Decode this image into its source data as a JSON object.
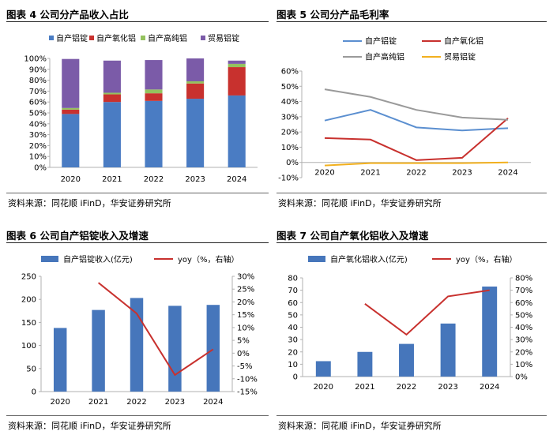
{
  "colors": {
    "blue": "#4a7cc3",
    "red": "#c8312e",
    "green": "#94c25e",
    "purple": "#7b5ba8",
    "grey": "#9a9a9a",
    "yellow": "#f2b01e",
    "lightblue": "#5b8fd0",
    "bar_blue": "#4676bb"
  },
  "panels": [
    {
      "title": "图表 4 公司分产品收入占比",
      "source": "资料来源：同花顺 iFinD，华安证券研究所"
    },
    {
      "title": "图表 5 公司分产品毛利率",
      "source": "资料来源：同花顺 iFinD，华安证券研究所"
    },
    {
      "title": "图表 6 公司自产铝锭收入及增速",
      "source": "资料来源：同花顺 iFinD，华安证券研究所"
    },
    {
      "title": "图表 7 公司自产氧化铝收入及增速",
      "source": "资料来源：同花顺 iFinD，华安证券研究所"
    }
  ],
  "chart_data": [
    {
      "type": "bar",
      "stacked": true,
      "title": "公司分产品收入占比",
      "categories": [
        "2020",
        "2021",
        "2022",
        "2023",
        "2024"
      ],
      "ylim": [
        0,
        100
      ],
      "y_ticks": [
        "0%",
        "10%",
        "20%",
        "30%",
        "40%",
        "50%",
        "60%",
        "70%",
        "80%",
        "90%",
        "100%"
      ],
      "legend": [
        "自产铝锭",
        "自产氧化铝",
        "自产高纯铝",
        "贸易铝锭"
      ],
      "series": [
        {
          "name": "自产铝锭",
          "values": [
            49,
            60,
            61,
            63,
            66
          ]
        },
        {
          "name": "自产氧化铝",
          "values": [
            4,
            7,
            7,
            14,
            26
          ]
        },
        {
          "name": "自产高纯铝",
          "values": [
            1.5,
            1.5,
            3.5,
            2,
            3
          ]
        },
        {
          "name": "贸易铝锭",
          "values": [
            45,
            29.5,
            27,
            21,
            3
          ]
        }
      ]
    },
    {
      "type": "line",
      "title": "公司分产品毛利率",
      "categories": [
        "2020",
        "2021",
        "2022",
        "2023",
        "2024"
      ],
      "ylim": [
        -10,
        60
      ],
      "y_ticks": [
        "-10%",
        "0%",
        "10%",
        "20%",
        "30%",
        "40%",
        "50%",
        "60%"
      ],
      "legend": [
        "自产铝锭",
        "自产氧化铝",
        "自产高纯铝",
        "贸易铝锭"
      ],
      "series": [
        {
          "name": "自产铝锭",
          "values": [
            27.5,
            34.5,
            23,
            21,
            22.5
          ]
        },
        {
          "name": "自产氧化铝",
          "values": [
            16,
            15,
            1.5,
            3,
            29
          ]
        },
        {
          "name": "自产高纯铝",
          "values": [
            48,
            43,
            34.5,
            29.5,
            28
          ]
        },
        {
          "name": "贸易铝锭",
          "values": [
            -2,
            -0.5,
            -0.5,
            -0.5,
            0
          ]
        }
      ]
    },
    {
      "type": "bar+line",
      "title": "公司自产铝锭收入及增速",
      "categories": [
        "2020",
        "2021",
        "2022",
        "2023",
        "2024"
      ],
      "bar": {
        "name": "自产铝锭收入(亿元)",
        "values": [
          138,
          177,
          203,
          186,
          188
        ],
        "ylim": [
          0,
          250
        ],
        "ticks": [
          "0",
          "50",
          "100",
          "150",
          "200",
          "250"
        ]
      },
      "line": {
        "name": "yoy（%，右轴）",
        "values": [
          null,
          27.5,
          15.5,
          -8.5,
          1.5
        ],
        "ylim": [
          -15,
          30
        ],
        "ticks": [
          "-15%",
          "-10%",
          "-5%",
          "0%",
          "5%",
          "10%",
          "15%",
          "20%",
          "25%",
          "30%"
        ]
      }
    },
    {
      "type": "bar+line",
      "title": "公司自产氧化铝收入及增速",
      "categories": [
        "2020",
        "2021",
        "2022",
        "2023",
        "2024"
      ],
      "bar": {
        "name": "自产氧化铝收入(亿元)",
        "values": [
          12.5,
          20,
          26.5,
          43,
          73
        ],
        "ylim": [
          0,
          80
        ],
        "ticks": [
          "0",
          "10",
          "20",
          "30",
          "40",
          "50",
          "60",
          "70",
          "80"
        ]
      },
      "line": {
        "name": "yoy（%，右轴）",
        "values": [
          null,
          59,
          34,
          65,
          70
        ],
        "ylim": [
          0,
          80
        ],
        "ticks": [
          "0%",
          "10%",
          "20%",
          "30%",
          "40%",
          "50%",
          "60%",
          "70%",
          "80%"
        ]
      }
    }
  ]
}
